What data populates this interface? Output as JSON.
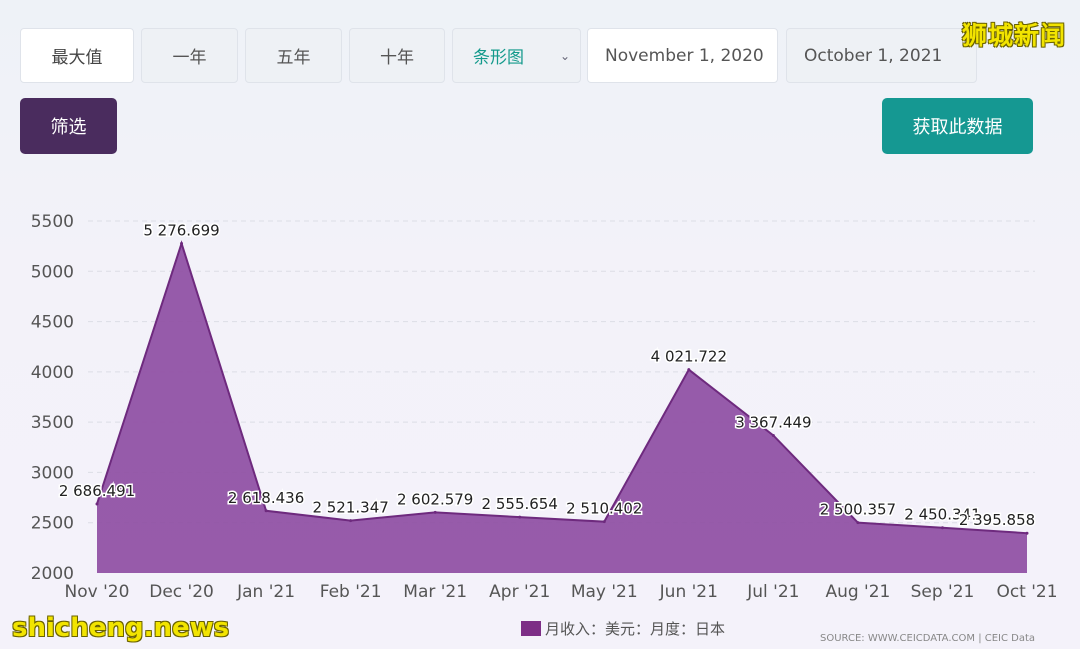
{
  "toolbar": {
    "buttons": [
      "最大值",
      "一年",
      "五年",
      "十年"
    ],
    "chart_type": "条形图",
    "date_from": "November 1, 2020",
    "date_to": "October 1, 2021",
    "filter_label": "筛选",
    "get_data_label": "获取此数据"
  },
  "watermark": {
    "top": "狮城新闻",
    "bottom": "shicheng.news"
  },
  "colors": {
    "area_fill": "#8e4ea3",
    "area_stroke": "#6e2a7e",
    "legend": "#7d2e86"
  },
  "chart_data": {
    "type": "area",
    "categories": [
      "Nov '20",
      "Dec '20",
      "Jan '21",
      "Feb '21",
      "Mar '21",
      "Apr '21",
      "May '21",
      "Jun '21",
      "Jul '21",
      "Aug '21",
      "Sep '21",
      "Oct '21"
    ],
    "series": [
      {
        "name": "月收入：美元：月度：日本",
        "values": [
          2686.491,
          5276.699,
          2618.436,
          2521.347,
          2602.579,
          2555.654,
          2510.402,
          4021.722,
          3367.449,
          2500.357,
          2450.341,
          2395.858
        ],
        "labels": [
          "2 686.491",
          "5 276.699",
          "2 618.436",
          "2 521.347",
          "2 602.579",
          "2 555.654",
          "2 510.402",
          "4 021.722",
          "3 367.449",
          "2 500.357",
          "2 450.341",
          "2 395.858"
        ]
      }
    ],
    "ylim": [
      2000,
      5500
    ],
    "yticks": [
      "2000",
      "2500",
      "3000",
      "3500",
      "4000",
      "4500",
      "5000",
      "5500"
    ],
    "grid": true,
    "legend": "bottom",
    "source": "SOURCE: WWW.CEICDATA.COM | CEIC Data"
  }
}
